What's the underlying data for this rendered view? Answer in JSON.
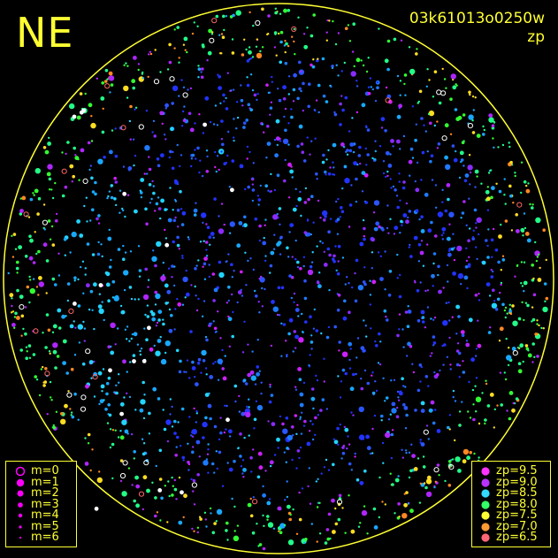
{
  "header": {
    "corner_label": "NE",
    "exposure_id": "03k61013o0250w",
    "mode_label": "zp"
  },
  "colors": {
    "background": "#000000",
    "annotation": "#ffff33",
    "magnitude_marker": "#ff00ff"
  },
  "magnitude_legend": {
    "items": [
      {
        "label": "m=0",
        "marker": "open-circle"
      },
      {
        "label": "m=1",
        "marker": "filled-circle"
      },
      {
        "label": "m=2",
        "marker": "filled-circle"
      },
      {
        "label": "m=3",
        "marker": "filled-circle"
      },
      {
        "label": "m=4",
        "marker": "filled-circle"
      },
      {
        "label": "m=5",
        "marker": "filled-circle"
      },
      {
        "label": "m=6",
        "marker": "filled-circle"
      }
    ]
  },
  "zp_legend": {
    "items": [
      {
        "label": "zp=9.5",
        "color": "#ff33ff"
      },
      {
        "label": "zp=9.0",
        "color": "#b833ff"
      },
      {
        "label": "zp=8.5",
        "color": "#33d9ff"
      },
      {
        "label": "zp=8.0",
        "color": "#33ff66"
      },
      {
        "label": "zp=7.5",
        "color": "#ffff33"
      },
      {
        "label": "zp=7.0",
        "color": "#ff9933"
      },
      {
        "label": "zp=6.5",
        "color": "#ff6677"
      }
    ]
  }
}
